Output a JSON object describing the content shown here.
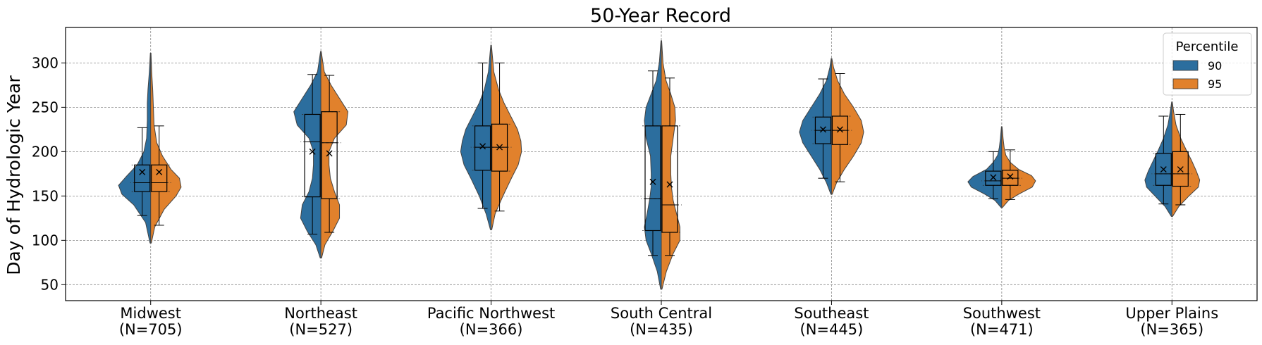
{
  "chart_data": {
    "type": "violin",
    "title": "50-Year Record",
    "xlabel": "",
    "ylabel": "Day of Hydrologic Year",
    "ylim": [
      32,
      340
    ],
    "yticks": [
      50,
      100,
      150,
      200,
      250,
      300
    ],
    "grid": true,
    "legend": {
      "title": "Percentile",
      "placement": "top-right"
    },
    "categories": [
      {
        "name": "Midwest",
        "n_label": "(N=705)"
      },
      {
        "name": "Northeast",
        "n_label": "(N=527)"
      },
      {
        "name": "Pacific Northwest",
        "n_label": "(N=366)"
      },
      {
        "name": "South Central",
        "n_label": "(N=435)"
      },
      {
        "name": "Southeast",
        "n_label": "(N=445)"
      },
      {
        "name": "Southwest",
        "n_label": "(N=471)"
      },
      {
        "name": "Upper Plains",
        "n_label": "(N=365)"
      }
    ],
    "series": [
      {
        "name": "90",
        "color": "#2c6e9e",
        "stats": [
          {
            "min": 97,
            "max": 311,
            "whisker_low": 128,
            "whisker_high": 227,
            "q1": 155,
            "median": 165,
            "q3": 185,
            "mean": 177,
            "density": [
              [
                97,
                0.02
              ],
              [
                120,
                0.15
              ],
              [
                140,
                0.5
              ],
              [
                152,
                0.85
              ],
              [
                162,
                0.95
              ],
              [
                172,
                0.72
              ],
              [
                185,
                0.4
              ],
              [
                200,
                0.2
              ],
              [
                215,
                0.12
              ],
              [
                235,
                0.1
              ],
              [
                255,
                0.1
              ],
              [
                270,
                0.08
              ],
              [
                290,
                0.04
              ],
              [
                311,
                0.01
              ]
            ]
          },
          {
            "min": 80,
            "max": 313,
            "whisker_low": 107,
            "whisker_high": 287,
            "q1": 149,
            "median": 211,
            "q3": 242,
            "mean": 200,
            "density": [
              [
                80,
                0.02
              ],
              [
                95,
                0.15
              ],
              [
                110,
                0.4
              ],
              [
                125,
                0.6
              ],
              [
                140,
                0.55
              ],
              [
                155,
                0.35
              ],
              [
                170,
                0.25
              ],
              [
                185,
                0.22
              ],
              [
                200,
                0.22
              ],
              [
                215,
                0.35
              ],
              [
                230,
                0.7
              ],
              [
                245,
                0.8
              ],
              [
                260,
                0.55
              ],
              [
                275,
                0.3
              ],
              [
                290,
                0.1
              ],
              [
                313,
                0.01
              ]
            ]
          },
          {
            "min": 112,
            "max": 320,
            "whisker_low": 136,
            "whisker_high": 300,
            "q1": 179,
            "median": 205,
            "q3": 229,
            "mean": 206,
            "density": [
              [
                112,
                0.02
              ],
              [
                130,
                0.15
              ],
              [
                150,
                0.35
              ],
              [
                170,
                0.6
              ],
              [
                185,
                0.8
              ],
              [
                200,
                0.9
              ],
              [
                212,
                0.85
              ],
              [
                225,
                0.75
              ],
              [
                240,
                0.55
              ],
              [
                255,
                0.35
              ],
              [
                270,
                0.2
              ],
              [
                290,
                0.08
              ],
              [
                320,
                0.01
              ]
            ]
          },
          {
            "min": 45,
            "max": 325,
            "whisker_low": 83,
            "whisker_high": 291,
            "q1": 111,
            "median": 147,
            "q3": 229,
            "mean": 166,
            "density": [
              [
                45,
                0.02
              ],
              [
                65,
                0.12
              ],
              [
                85,
                0.3
              ],
              [
                100,
                0.45
              ],
              [
                115,
                0.5
              ],
              [
                130,
                0.42
              ],
              [
                145,
                0.35
              ],
              [
                160,
                0.3
              ],
              [
                175,
                0.3
              ],
              [
                195,
                0.32
              ],
              [
                215,
                0.45
              ],
              [
                235,
                0.5
              ],
              [
                250,
                0.45
              ],
              [
                265,
                0.3
              ],
              [
                280,
                0.15
              ],
              [
                300,
                0.06
              ],
              [
                325,
                0.01
              ]
            ]
          },
          {
            "min": 152,
            "max": 305,
            "whisker_low": 170,
            "whisker_high": 282,
            "q1": 209,
            "median": 224,
            "q3": 239,
            "mean": 225,
            "density": [
              [
                152,
                0.02
              ],
              [
                165,
                0.15
              ],
              [
                180,
                0.35
              ],
              [
                195,
                0.6
              ],
              [
                210,
                0.85
              ],
              [
                222,
                0.95
              ],
              [
                235,
                0.85
              ],
              [
                250,
                0.6
              ],
              [
                265,
                0.35
              ],
              [
                280,
                0.15
              ],
              [
                295,
                0.05
              ],
              [
                305,
                0.01
              ]
            ]
          },
          {
            "min": 137,
            "max": 228,
            "whisker_low": 147,
            "whisker_high": 200,
            "q1": 162,
            "median": 167,
            "q3": 178,
            "mean": 171,
            "density": [
              [
                137,
                0.02
              ],
              [
                145,
                0.2
              ],
              [
                152,
                0.5
              ],
              [
                160,
                0.9
              ],
              [
                166,
                1.0
              ],
              [
                172,
                0.85
              ],
              [
                180,
                0.45
              ],
              [
                188,
                0.25
              ],
              [
                196,
                0.12
              ],
              [
                205,
                0.07
              ],
              [
                215,
                0.04
              ],
              [
                228,
                0.01
              ]
            ]
          },
          {
            "min": 127,
            "max": 256,
            "whisker_low": 141,
            "whisker_high": 240,
            "q1": 162,
            "median": 175,
            "q3": 198,
            "mean": 180,
            "density": [
              [
                127,
                0.02
              ],
              [
                138,
                0.2
              ],
              [
                150,
                0.5
              ],
              [
                160,
                0.75
              ],
              [
                168,
                0.8
              ],
              [
                178,
                0.7
              ],
              [
                190,
                0.55
              ],
              [
                202,
                0.4
              ],
              [
                215,
                0.25
              ],
              [
                230,
                0.12
              ],
              [
                245,
                0.05
              ],
              [
                256,
                0.01
              ]
            ]
          }
        ]
      },
      {
        "name": "95",
        "color": "#e1812c",
        "stats": [
          {
            "min": 97,
            "max": 311,
            "whisker_low": 117,
            "whisker_high": 229,
            "q1": 155,
            "median": 165,
            "q3": 185,
            "mean": 177,
            "density": [
              [
                97,
                0.02
              ],
              [
                115,
                0.12
              ],
              [
                135,
                0.4
              ],
              [
                150,
                0.75
              ],
              [
                160,
                0.9
              ],
              [
                170,
                0.85
              ],
              [
                180,
                0.6
              ],
              [
                195,
                0.35
              ],
              [
                210,
                0.18
              ],
              [
                230,
                0.1
              ],
              [
                250,
                0.08
              ],
              [
                270,
                0.06
              ],
              [
                290,
                0.03
              ],
              [
                311,
                0.01
              ]
            ]
          },
          {
            "min": 80,
            "max": 313,
            "whisker_low": 109,
            "whisker_high": 286,
            "q1": 147,
            "median": 210,
            "q3": 245,
            "mean": 198,
            "density": [
              [
                80,
                0.02
              ],
              [
                95,
                0.12
              ],
              [
                110,
                0.35
              ],
              [
                125,
                0.55
              ],
              [
                140,
                0.55
              ],
              [
                155,
                0.4
              ],
              [
                170,
                0.28
              ],
              [
                185,
                0.24
              ],
              [
                200,
                0.24
              ],
              [
                215,
                0.4
              ],
              [
                230,
                0.75
              ],
              [
                245,
                0.8
              ],
              [
                260,
                0.55
              ],
              [
                275,
                0.3
              ],
              [
                290,
                0.1
              ],
              [
                313,
                0.01
              ]
            ]
          },
          {
            "min": 112,
            "max": 320,
            "whisker_low": 133,
            "whisker_high": 300,
            "q1": 178,
            "median": 205,
            "q3": 231,
            "mean": 205,
            "density": [
              [
                112,
                0.02
              ],
              [
                130,
                0.12
              ],
              [
                150,
                0.35
              ],
              [
                170,
                0.6
              ],
              [
                185,
                0.8
              ],
              [
                200,
                0.9
              ],
              [
                212,
                0.88
              ],
              [
                225,
                0.78
              ],
              [
                240,
                0.58
              ],
              [
                255,
                0.38
              ],
              [
                270,
                0.22
              ],
              [
                290,
                0.08
              ],
              [
                320,
                0.01
              ]
            ]
          },
          {
            "min": 45,
            "max": 325,
            "whisker_low": 83,
            "whisker_high": 283,
            "q1": 109,
            "median": 140,
            "q3": 229,
            "mean": 163,
            "density": [
              [
                45,
                0.02
              ],
              [
                65,
                0.15
              ],
              [
                85,
                0.35
              ],
              [
                100,
                0.55
              ],
              [
                115,
                0.55
              ],
              [
                130,
                0.45
              ],
              [
                145,
                0.35
              ],
              [
                160,
                0.3
              ],
              [
                175,
                0.28
              ],
              [
                195,
                0.28
              ],
              [
                215,
                0.35
              ],
              [
                235,
                0.42
              ],
              [
                250,
                0.4
              ],
              [
                265,
                0.28
              ],
              [
                280,
                0.14
              ],
              [
                300,
                0.05
              ],
              [
                325,
                0.01
              ]
            ]
          },
          {
            "min": 152,
            "max": 305,
            "whisker_low": 166,
            "whisker_high": 288,
            "q1": 208,
            "median": 224,
            "q3": 240,
            "mean": 225,
            "density": [
              [
                152,
                0.02
              ],
              [
                165,
                0.15
              ],
              [
                180,
                0.38
              ],
              [
                195,
                0.65
              ],
              [
                210,
                0.88
              ],
              [
                222,
                0.95
              ],
              [
                235,
                0.88
              ],
              [
                250,
                0.65
              ],
              [
                265,
                0.38
              ],
              [
                280,
                0.18
              ],
              [
                295,
                0.06
              ],
              [
                305,
                0.01
              ]
            ]
          },
          {
            "min": 137,
            "max": 228,
            "whisker_low": 146,
            "whisker_high": 202,
            "q1": 162,
            "median": 170,
            "q3": 179,
            "mean": 172,
            "density": [
              [
                137,
                0.02
              ],
              [
                145,
                0.2
              ],
              [
                152,
                0.5
              ],
              [
                160,
                0.9
              ],
              [
                167,
                1.0
              ],
              [
                173,
                0.88
              ],
              [
                180,
                0.5
              ],
              [
                188,
                0.25
              ],
              [
                196,
                0.12
              ],
              [
                205,
                0.07
              ],
              [
                215,
                0.04
              ],
              [
                228,
                0.01
              ]
            ]
          },
          {
            "min": 127,
            "max": 256,
            "whisker_low": 140,
            "whisker_high": 242,
            "q1": 161,
            "median": 175,
            "q3": 200,
            "mean": 180,
            "density": [
              [
                127,
                0.02
              ],
              [
                138,
                0.2
              ],
              [
                150,
                0.5
              ],
              [
                160,
                0.78
              ],
              [
                168,
                0.82
              ],
              [
                178,
                0.72
              ],
              [
                190,
                0.58
              ],
              [
                202,
                0.42
              ],
              [
                215,
                0.26
              ],
              [
                230,
                0.12
              ],
              [
                245,
                0.05
              ],
              [
                256,
                0.01
              ]
            ]
          }
        ]
      }
    ]
  }
}
